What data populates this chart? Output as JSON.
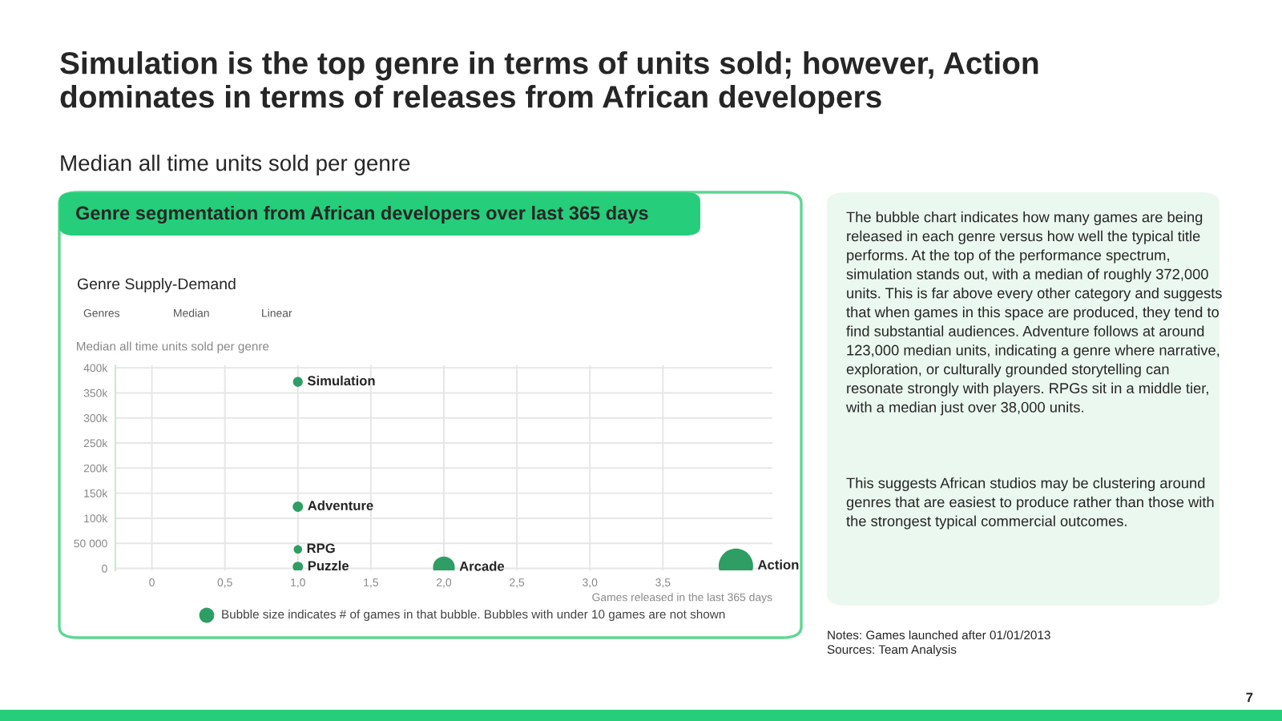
{
  "chart_data": {
    "type": "bubble",
    "title": "Simulation is the top genre in terms of units sold; however, Action dominates in terms of releases from African developers",
    "subtitle": "Median all time units sold per genre",
    "xlabel": "Games released in the last 365 days",
    "ylabel": "Median all time units sold per genre",
    "series": [
      {
        "name": "Simulation",
        "color": "#2e9e64",
        "x": [
          1.0
        ],
        "values": [
          372000
        ],
        "sizes": [
          0.08
        ]
      },
      {
        "name": "Adventure",
        "color": "#2e9e64",
        "x": [
          1.0
        ],
        "values": [
          123000
        ],
        "sizes": [
          0.09
        ]
      },
      {
        "name": "RPG",
        "color": "#2e9e64",
        "x": [
          1.0
        ],
        "values": [
          38000
        ],
        "sizes": [
          0.06
        ]
      },
      {
        "name": "Puzzle",
        "color": "#2e9e64",
        "x": [
          1.0
        ],
        "values": [
          3000
        ],
        "sizes": [
          0.09
        ]
      },
      {
        "name": "Arcade",
        "color": "#2e9e64",
        "x": [
          2.0
        ],
        "values": [
          2000
        ],
        "sizes": [
          0.4
        ]
      },
      {
        "name": "Action",
        "color": "#2e9e64",
        "x": [
          4.0
        ],
        "values": [
          5000
        ],
        "sizes": [
          1
        ]
      }
    ],
    "xlim": [
      -0.25,
      4.25
    ],
    "xticks": [
      0,
      {
        "value": 0.5,
        "label": "0,5"
      },
      {
        "value": 1.0,
        "label": "1,0"
      },
      {
        "value": 1.5,
        "label": "1,5"
      },
      {
        "value": 2.0,
        "label": "2,0"
      },
      {
        "value": 2.5,
        "label": "2,5"
      },
      {
        "value": 3.0,
        "label": "3,0"
      },
      {
        "value": 3.5,
        "label": "3,5"
      }
    ],
    "ylim": [
      -4000,
      405000
    ],
    "yticks": [
      0,
      {
        "value": 50000,
        "label": "50 000"
      },
      {
        "value": 100000,
        "label": "100k"
      },
      {
        "value": 150000,
        "label": "150k"
      },
      {
        "value": 200000,
        "label": "200k"
      },
      {
        "value": 250000,
        "label": "250k"
      },
      {
        "value": 300000,
        "label": "300k"
      },
      {
        "value": 350000,
        "label": "350k"
      },
      {
        "value": 400000,
        "label": "400k"
      }
    ],
    "grid": true,
    "legend": false,
    "annotations": [
      "Genre segmentation from African developers over last 365 days",
      "Genre Supply-Demand",
      "Genres",
      "Median",
      "Linear",
      "Bubble size indicates # of games in that bubble. Bubbles with under 10 games are not shown",
      "The bubble chart indicates how many games are being released in each genre versus how well the typical title performs. At the top of the performance spectrum, simulation stands out, with a median of roughly 372,000 units. This is far above every other category and suggests that when games in this space are produced, they tend to find substantial audiences. Adventure follows at around 123,000 median units, indicating a genre where narrative, exploration, or culturally grounded storytelling can resonate strongly with players. RPGs sit in a middle tier, with a median just over 38,000 units.",
      "This suggests African studios may be clustering around genres that are easiest to produce rather than those with the strongest typical commercial outcomes.",
      "Notes: Games launched after 01/01/2013",
      "Sources: Team Analysis",
      "7"
    ]
  }
}
